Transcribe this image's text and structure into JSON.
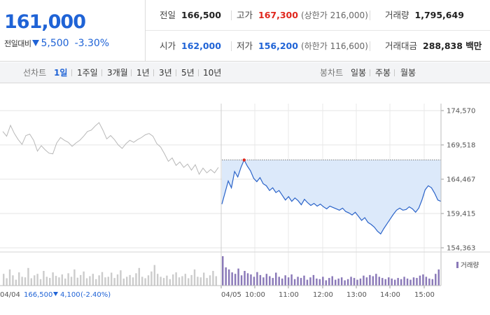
{
  "header": {
    "current_price": "161,000",
    "change_label": "전일대비",
    "change_amount": "5,500",
    "change_pct": "-3.30%",
    "prev_close_label": "전일",
    "prev_close": "166,500",
    "high_label": "고가",
    "high": "167,300",
    "upper_limit": "(상한가 216,000)",
    "volume_label": "거래량",
    "volume": "1,795,649",
    "open_label": "시가",
    "open": "162,000",
    "low_label": "저가",
    "low": "156,200",
    "lower_limit": "(하한가 116,600)",
    "value_label": "거래대금",
    "value": "288,838 백만"
  },
  "toolbar": {
    "line_chart_label": "선차트",
    "line_periods": [
      "1일",
      "1주일",
      "3개월",
      "1년",
      "3년",
      "5년",
      "10년"
    ],
    "active_period": "1일",
    "candle_chart_label": "봉차트",
    "candle_periods": [
      "일봉",
      "주봉",
      "월봉"
    ]
  },
  "colors": {
    "accent_blue": "#1f63d6",
    "up_red": "#e0271d",
    "line_blue": "#2a63c9",
    "fill_blue": "#dce9fa",
    "prev_day_gray": "#b8b8b8",
    "volume_purple": "#8a79b8"
  },
  "chart_data": {
    "type": "line",
    "y_ticks": [
      "174,570",
      "169,518",
      "164,467",
      "159,415",
      "154,363"
    ],
    "ylim": [
      154363,
      174570
    ],
    "x_ticks": [
      "04/05",
      "10:00",
      "11:00",
      "12:00",
      "13:00",
      "14:00",
      "15:00"
    ],
    "volume_legend": "거래량",
    "prev_day_footer": {
      "date": "04/04",
      "close": "166,500",
      "change": "4,100",
      "change_pct": "(-2.40%)"
    },
    "series": [
      {
        "values": [
          171500,
          170800,
          172400,
          171200,
          170300,
          169600,
          170900,
          171100,
          170200,
          168600,
          169400,
          168800,
          168300,
          168200,
          169800,
          170600,
          170200,
          169900,
          169300,
          169800,
          170200,
          170800,
          171500,
          171700,
          172300,
          172800,
          171700,
          170400,
          170900,
          170300,
          169500,
          169000,
          169700,
          170200,
          169900,
          170300,
          170600,
          171000,
          171200,
          170800,
          169700,
          169200,
          168200,
          167100,
          167600,
          166500,
          167000,
          166200,
          166700,
          165800,
          166600,
          165200,
          166100,
          165400,
          165900,
          165400,
          166200
        ]
      },
      {
        "values": [
          160800,
          162500,
          164200,
          163200,
          165600,
          164800,
          166200,
          167300,
          166400,
          165700,
          164600,
          164100,
          164700,
          163800,
          163500,
          162800,
          163200,
          162500,
          162800,
          162100,
          161400,
          161900,
          161200,
          161700,
          161300,
          160700,
          161500,
          161000,
          160600,
          160900,
          160500,
          160800,
          160400,
          160100,
          160500,
          160300,
          160100,
          159900,
          160200,
          159700,
          159500,
          159200,
          159600,
          159000,
          158400,
          158800,
          158100,
          157800,
          157400,
          156800,
          156400,
          157200,
          157900,
          158600,
          159300,
          159900,
          160200,
          159900,
          160000,
          160400,
          160100,
          159600,
          160200,
          161400,
          162900,
          163500,
          163200,
          162400,
          161400,
          161200
        ]
      }
    ],
    "volume_series": [
      {
        "values": [
          40,
          25,
          55,
          35,
          20,
          45,
          30,
          28,
          60,
          25,
          35,
          40,
          22,
          50,
          30,
          26,
          45,
          33,
          28,
          38,
          24,
          42,
          30,
          55,
          27,
          36,
          48,
          25,
          32,
          40,
          22,
          35,
          46,
          28,
          30,
          44,
          26,
          38,
          52,
          24,
          30,
          36,
          28,
          42,
          60,
          30,
          25,
          35,
          48,
          70,
          40,
          30,
          26,
          34,
          22,
          38,
          45,
          28,
          32,
          40,
          25,
          36,
          55,
          30,
          28,
          44,
          26,
          35,
          50,
          32
        ]
      },
      {
        "values": [
          100,
          62,
          55,
          45,
          40,
          58,
          35,
          50,
          42,
          38,
          30,
          46,
          36,
          28,
          40,
          32,
          26,
          44,
          30,
          24,
          35,
          28,
          38,
          22,
          30,
          26,
          34,
          20,
          28,
          36,
          24,
          22,
          30,
          18,
          26,
          32,
          20,
          24,
          28,
          18,
          22,
          30,
          26,
          20,
          24,
          34,
          28,
          36,
          32,
          40,
          30,
          26,
          22,
          28,
          24,
          20,
          26,
          22,
          30,
          24,
          20,
          28,
          26,
          34,
          38,
          30,
          24,
          22,
          40,
          55
        ]
      }
    ]
  }
}
